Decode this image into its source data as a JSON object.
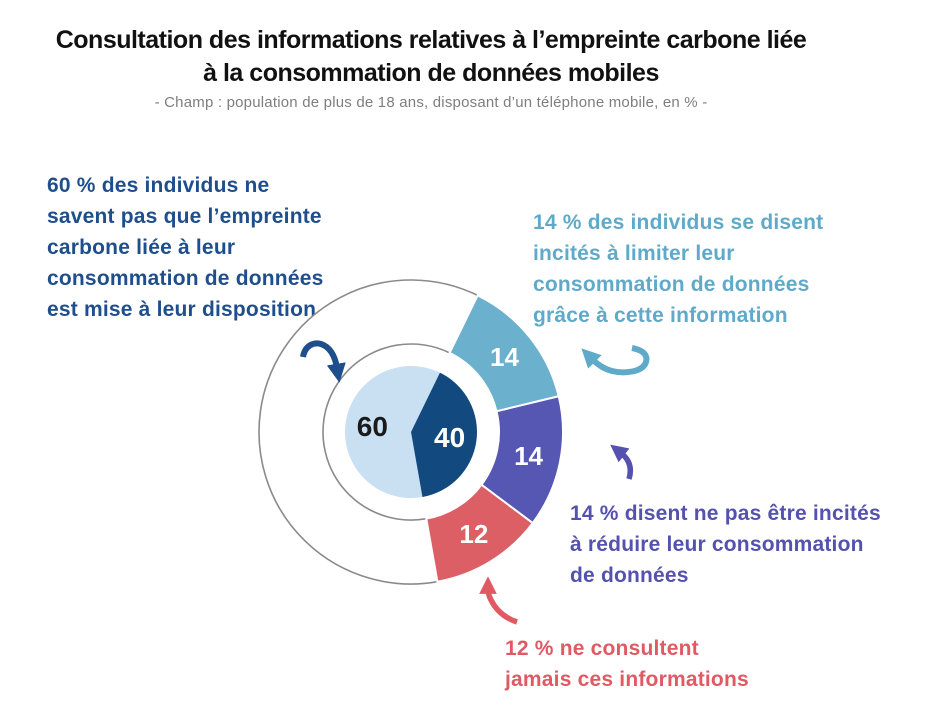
{
  "header": {
    "title": "Consultation des informations relatives à l’empreinte carbone liée\nà la consommation de données mobiles",
    "subtitle": "- Champ : population de plus de 18 ans, disposant d’un téléphone mobile, en % -"
  },
  "colors": {
    "navy": "#1F4E8C",
    "teal": "#5FA9C9",
    "purple": "#5451AF",
    "red": "#E05A64",
    "gray_outline": "#8A8A8A",
    "title": "#111111",
    "subtitle_gray": "#7E7E7E"
  },
  "chart_data": {
    "type": "pie",
    "title": "Consultation des informations relatives à l’empreinte carbone liée à la consommation de données mobiles",
    "note": "- Champ : population de plus de 18 ans, disposant d’un téléphone mobile, en % -",
    "unit": "%",
    "start_angle_deg": 26,
    "inner_pie": {
      "slices": [
        {
          "label": "60",
          "value": 60,
          "start_deg": 170,
          "end_deg": 386,
          "color": "#C9DFF2",
          "label_color": "#1A1A1A"
        },
        {
          "label": "40",
          "value": 40,
          "start_deg": 26,
          "end_deg": 170,
          "color": "#12497F",
          "label_color": "#FFFFFF"
        }
      ]
    },
    "outer_ring": {
      "segments": [
        {
          "label": "14",
          "value": 14,
          "start_deg": 26,
          "end_deg": 76.4,
          "color": "#6BB0CD",
          "label_color": "#FFFFFF"
        },
        {
          "label": "14",
          "value": 14,
          "start_deg": 76.4,
          "end_deg": 126.8,
          "color": "#5557B2",
          "label_color": "#FFFFFF"
        },
        {
          "label": "12",
          "value": 12,
          "start_deg": 126.8,
          "end_deg": 170,
          "color": "#DC5F66",
          "label_color": "#FFFFFF"
        },
        {
          "label": "",
          "value": 60,
          "start_deg": 170,
          "end_deg": 386,
          "color": "#FFFFFF",
          "outline": "#8A8A8A"
        }
      ]
    }
  },
  "annotations": [
    {
      "text": "60 % des individus ne\nsavent pas que l’empreinte\ncarbone liée à leur\nconsommation de données\nest mise à leur disposition",
      "color": "#1F4E8C"
    },
    {
      "text": "14 % des individus se disent\nincités à limiter leur\nconsommation de données\ngrâce à cette information",
      "color": "#5FA9C9"
    },
    {
      "text": "14 % disent ne pas être incités\nà réduire leur consommation\nde données",
      "color": "#5451AF"
    },
    {
      "text": "12 % ne consultent\njamais ces informations",
      "color": "#E05A64"
    }
  ]
}
